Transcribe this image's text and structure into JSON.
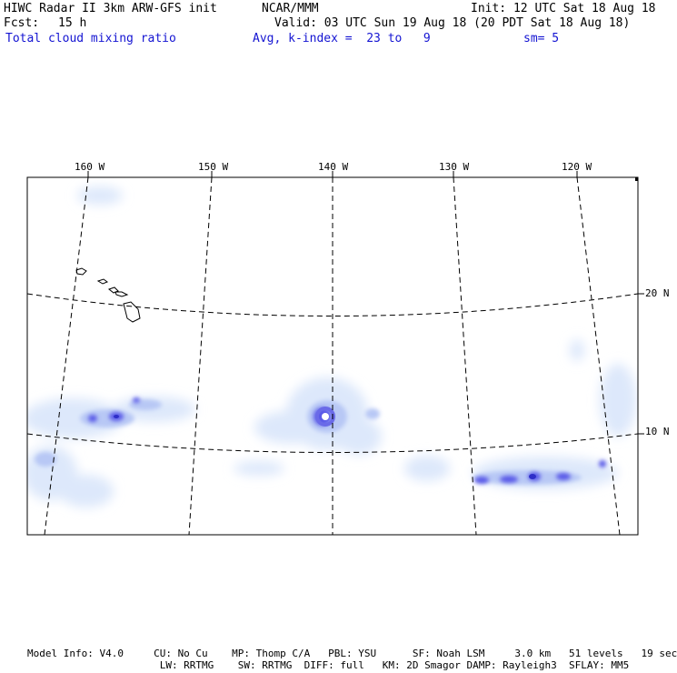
{
  "header": {
    "title": "HIWC Radar II 3km ARW-GFS init",
    "org": "NCAR/MMM",
    "init": "Init: 12 UTC Sat 18 Aug 18",
    "fcst_label": "Fcst:",
    "fcst_value": "15 h",
    "valid": "Valid: 03 UTC Sun 19 Aug 18 (20 PDT Sat 18 Aug 18)",
    "field": "Total cloud mixing ratio",
    "avg": "Avg, k-index =  23 to   9",
    "smooth": "sm= 5"
  },
  "longitude_labels": [
    "160 W",
    "150 W",
    "140 W",
    "130 W",
    "120 W"
  ],
  "latitude_labels": [
    "20 N",
    "10 N"
  ],
  "footer": {
    "line1": "Model Info: V4.0     CU: No Cu    MP: Thomp C/A   PBL: YSU      SF: Noah LSM     3.0 km   51 levels   19 sec",
    "line2": "                      LW: RRTMG    SW: RRTMG  DIFF: full   KM: 2D Smagor DAMP: Rayleigh3  SFLAY: MM5"
  },
  "colors": {
    "text": "#000000",
    "subtitle": "#1414d2",
    "cloud_light": "#dde8fb",
    "cloud_mid": "#b8c8f5",
    "cloud_dark": "#5a5ae8",
    "cloud_core": "#2e2ec8"
  }
}
